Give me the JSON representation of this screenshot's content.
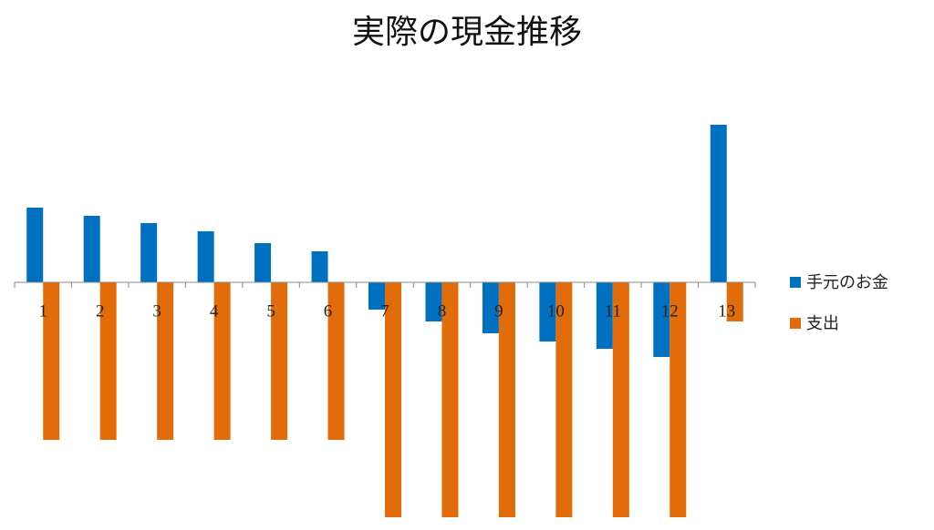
{
  "chart_data": {
    "type": "bar",
    "title": "実際の現金推移",
    "categories": [
      "1",
      "2",
      "3",
      "4",
      "5",
      "6",
      "7",
      "8",
      "9",
      "10",
      "11",
      "12",
      "13"
    ],
    "series": [
      {
        "name": "手元のお金",
        "color": "#0070c0",
        "values": [
          82,
          73,
          65,
          56,
          43,
          34,
          -30,
          -43,
          -56,
          -65,
          -73,
          -82,
          173
        ]
      },
      {
        "name": "支出",
        "color": "#e36c0a",
        "values": [
          -173,
          -173,
          -173,
          -173,
          -173,
          -173,
          -258,
          -258,
          -258,
          -258,
          -258,
          -258,
          -43
        ]
      }
    ],
    "ylim": [
      -260,
      200
    ],
    "legend": "right",
    "grid": false
  }
}
